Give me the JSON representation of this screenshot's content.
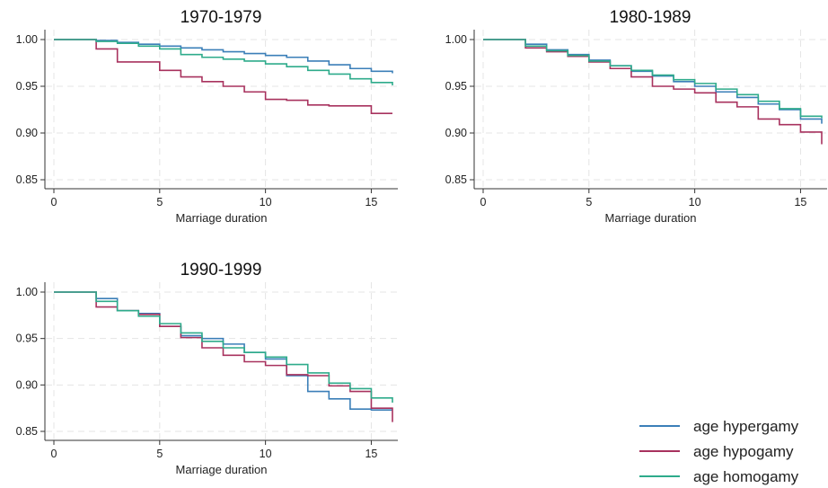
{
  "chart_data": [
    {
      "type": "line",
      "title": "1970-1979",
      "xlabel": "Marriage duration",
      "ylabel": "",
      "xlim": [
        0,
        16
      ],
      "ylim": [
        0.85,
        1.0
      ],
      "xticks": [
        "0",
        "5",
        "10",
        "15"
      ],
      "yticks": [
        "0.85",
        "0.90",
        "0.95",
        "1.00"
      ],
      "grid": true,
      "series": [
        {
          "name": "age hypergamy",
          "color": "#3b7fb8",
          "x": [
            0,
            2,
            3,
            4,
            5,
            6,
            7,
            8,
            9,
            10,
            11,
            12,
            13,
            14,
            15,
            16
          ],
          "y": [
            1.0,
            0.999,
            0.997,
            0.995,
            0.993,
            0.991,
            0.989,
            0.987,
            0.985,
            0.983,
            0.981,
            0.977,
            0.973,
            0.969,
            0.966,
            0.964
          ]
        },
        {
          "name": "age hypogamy",
          "color": "#a8325e",
          "x": [
            0,
            2,
            3,
            5,
            6,
            7,
            8,
            9,
            10,
            11,
            12,
            13,
            14,
            15,
            16
          ],
          "y": [
            1.0,
            0.99,
            0.976,
            0.967,
            0.96,
            0.955,
            0.95,
            0.944,
            0.936,
            0.935,
            0.93,
            0.929,
            0.929,
            0.921,
            0.921
          ]
        },
        {
          "name": "age homogamy",
          "color": "#2eab8b",
          "x": [
            0,
            2,
            3,
            4,
            5,
            6,
            7,
            8,
            9,
            10,
            11,
            12,
            13,
            14,
            15,
            16
          ],
          "y": [
            1.0,
            0.998,
            0.996,
            0.993,
            0.99,
            0.984,
            0.981,
            0.979,
            0.977,
            0.974,
            0.971,
            0.967,
            0.963,
            0.958,
            0.954,
            0.951
          ]
        }
      ]
    },
    {
      "type": "line",
      "title": "1980-1989",
      "xlabel": "Marriage duration",
      "ylabel": "",
      "xlim": [
        0,
        16
      ],
      "ylim": [
        0.85,
        1.0
      ],
      "xticks": [
        "0",
        "5",
        "10",
        "15"
      ],
      "yticks": [
        "0.85",
        "0.90",
        "0.95",
        "1.00"
      ],
      "grid": true,
      "series": [
        {
          "name": "age hypergamy",
          "color": "#3b7fb8",
          "x": [
            0,
            2,
            3,
            4,
            5,
            6,
            7,
            8,
            9,
            10,
            11,
            12,
            13,
            14,
            15,
            16
          ],
          "y": [
            1.0,
            0.995,
            0.989,
            0.984,
            0.978,
            0.972,
            0.966,
            0.961,
            0.955,
            0.95,
            0.944,
            0.938,
            0.931,
            0.925,
            0.915,
            0.91
          ]
        },
        {
          "name": "age hypogamy",
          "color": "#a8325e",
          "x": [
            0,
            2,
            3,
            4,
            5,
            6,
            7,
            8,
            9,
            10,
            11,
            12,
            13,
            14,
            15,
            16
          ],
          "y": [
            1.0,
            0.991,
            0.987,
            0.982,
            0.976,
            0.969,
            0.96,
            0.95,
            0.947,
            0.943,
            0.933,
            0.928,
            0.915,
            0.909,
            0.901,
            0.888
          ]
        },
        {
          "name": "age homogamy",
          "color": "#2eab8b",
          "x": [
            0,
            2,
            3,
            4,
            5,
            6,
            7,
            8,
            9,
            10,
            11,
            12,
            13,
            14,
            15,
            16
          ],
          "y": [
            1.0,
            0.993,
            0.988,
            0.983,
            0.977,
            0.972,
            0.967,
            0.962,
            0.957,
            0.953,
            0.947,
            0.941,
            0.934,
            0.926,
            0.918,
            0.916
          ]
        }
      ]
    },
    {
      "type": "line",
      "title": "1990-1999",
      "xlabel": "Marriage duration",
      "ylabel": "",
      "xlim": [
        0,
        16
      ],
      "ylim": [
        0.85,
        1.0
      ],
      "xticks": [
        "0",
        "5",
        "10",
        "15"
      ],
      "yticks": [
        "0.85",
        "0.90",
        "0.95",
        "1.00"
      ],
      "grid": true,
      "series": [
        {
          "name": "age hypergamy",
          "color": "#3b7fb8",
          "x": [
            0,
            2,
            3,
            4,
            5,
            6,
            7,
            8,
            9,
            10,
            11,
            12,
            13,
            14,
            15,
            16
          ],
          "y": [
            1.0,
            0.993,
            0.98,
            0.977,
            0.963,
            0.953,
            0.95,
            0.944,
            0.935,
            0.928,
            0.91,
            0.893,
            0.885,
            0.874,
            0.873,
            0.873
          ]
        },
        {
          "name": "age hypogamy",
          "color": "#a8325e",
          "x": [
            0,
            2,
            3,
            4,
            5,
            6,
            7,
            8,
            9,
            10,
            11,
            12,
            13,
            14,
            15,
            16
          ],
          "y": [
            1.0,
            0.984,
            0.98,
            0.976,
            0.963,
            0.951,
            0.94,
            0.932,
            0.925,
            0.921,
            0.911,
            0.91,
            0.899,
            0.893,
            0.875,
            0.86
          ]
        },
        {
          "name": "age homogamy",
          "color": "#2eab8b",
          "x": [
            0,
            2,
            3,
            4,
            5,
            6,
            7,
            8,
            9,
            10,
            11,
            12,
            13,
            14,
            15,
            16
          ],
          "y": [
            1.0,
            0.99,
            0.98,
            0.974,
            0.966,
            0.956,
            0.947,
            0.94,
            0.935,
            0.93,
            0.922,
            0.913,
            0.902,
            0.896,
            0.886,
            0.881
          ]
        }
      ]
    }
  ],
  "legend": {
    "position": "bottom-right",
    "items": [
      {
        "label": "age hypergamy",
        "color": "#3b7fb8"
      },
      {
        "label": "age hypogamy",
        "color": "#a8325e"
      },
      {
        "label": "age homogamy",
        "color": "#2eab8b"
      }
    ]
  }
}
